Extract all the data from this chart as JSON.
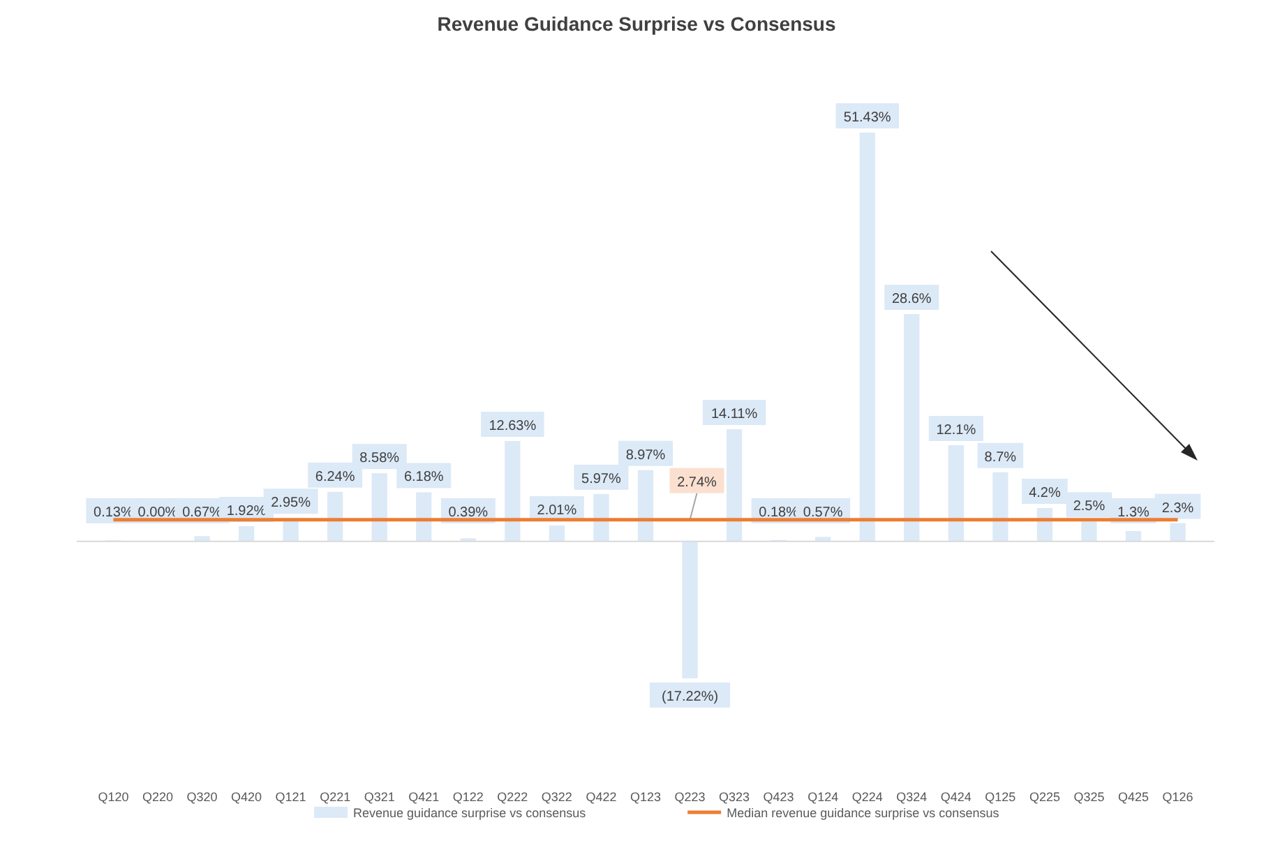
{
  "chart_data": {
    "type": "bar",
    "title": "Revenue Guidance Surprise vs Consensus",
    "categories": [
      "Q120",
      "Q220",
      "Q320",
      "Q420",
      "Q121",
      "Q221",
      "Q321",
      "Q421",
      "Q122",
      "Q222",
      "Q322",
      "Q422",
      "Q123",
      "Q223",
      "Q323",
      "Q423",
      "Q124",
      "Q224",
      "Q324",
      "Q424",
      "Q125",
      "Q225",
      "Q325",
      "Q425",
      "Q126"
    ],
    "series": [
      {
        "name": "Revenue guidance surprise vs consensus",
        "color": "#dce9f7",
        "values": [
          0.13,
          0.0,
          0.67,
          1.92,
          2.95,
          6.24,
          8.58,
          6.18,
          0.39,
          12.63,
          2.01,
          5.97,
          8.97,
          -17.22,
          14.11,
          0.18,
          0.57,
          51.43,
          28.6,
          12.1,
          8.7,
          4.2,
          2.5,
          1.3,
          2.3
        ],
        "value_labels": [
          "0.13%",
          "0.00%",
          "0.67%",
          "1.92%",
          "2.95%",
          "6.24%",
          "8.58%",
          "6.18%",
          "0.39%",
          "12.63%",
          "2.01%",
          "5.97%",
          "8.97%",
          "(17.22%)",
          "14.11%",
          "0.18%",
          "0.57%",
          "51.43%",
          "28.6%",
          "12.1%",
          "8.7%",
          "4.2%",
          "2.5%",
          "1.3%",
          "2.3%"
        ]
      },
      {
        "name": "Median revenue guidance surprise vs consensus",
        "type": "line",
        "color": "#ed7d31",
        "values": [
          2.74,
          2.74,
          2.74,
          2.74,
          2.74,
          2.74,
          2.74,
          2.74,
          2.74,
          2.74,
          2.74,
          2.74,
          2.74,
          2.74,
          2.74,
          2.74,
          2.74,
          2.74,
          2.74,
          2.74,
          2.74,
          2.74,
          2.74,
          2.74,
          2.74
        ],
        "value_labels": [
          null,
          null,
          null,
          null,
          null,
          null,
          null,
          null,
          null,
          null,
          null,
          null,
          null,
          "2.74%",
          null,
          null,
          null,
          null,
          null,
          null,
          null,
          null,
          null,
          null,
          null
        ]
      }
    ],
    "legend": "bottom",
    "marker": "none"
  }
}
